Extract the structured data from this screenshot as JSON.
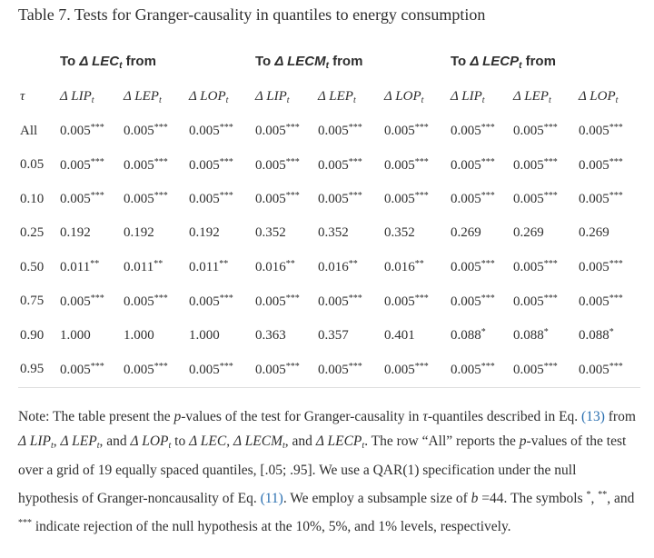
{
  "title": "Table 7. Tests for Granger-causality in quantiles to energy consumption",
  "table": {
    "group_headers": [
      {
        "prefix": "To",
        "base": "Δ LEC",
        "sub": "t",
        "suffix": "from"
      },
      {
        "prefix": "To",
        "base": "Δ LECM",
        "sub": "t",
        "suffix": "from"
      },
      {
        "prefix": "To",
        "base": "Δ LECP",
        "sub": "t",
        "suffix": "from"
      }
    ],
    "columns": [
      {
        "base": "τ"
      },
      {
        "base": "Δ LIP",
        "sub": "t"
      },
      {
        "base": "Δ LEP",
        "sub": "t"
      },
      {
        "base": "Δ LOP",
        "sub": "t"
      },
      {
        "base": "Δ LIP",
        "sub": "t"
      },
      {
        "base": "Δ LEP",
        "sub": "t"
      },
      {
        "base": "Δ LOP",
        "sub": "t"
      },
      {
        "base": "Δ LIP",
        "sub": "t"
      },
      {
        "base": "Δ LEP",
        "sub": "t"
      },
      {
        "base": "Δ LOP",
        "sub": "t"
      }
    ],
    "rows": [
      {
        "label": "All",
        "cells": [
          {
            "value": "0.005",
            "stars": "***"
          },
          {
            "value": "0.005",
            "stars": "***"
          },
          {
            "value": "0.005",
            "stars": "***"
          },
          {
            "value": "0.005",
            "stars": "***"
          },
          {
            "value": "0.005",
            "stars": "***"
          },
          {
            "value": "0.005",
            "stars": "***"
          },
          {
            "value": "0.005",
            "stars": "***"
          },
          {
            "value": "0.005",
            "stars": "***"
          },
          {
            "value": "0.005",
            "stars": "***"
          }
        ]
      },
      {
        "label": "0.05",
        "cells": [
          {
            "value": "0.005",
            "stars": "***"
          },
          {
            "value": "0.005",
            "stars": "***"
          },
          {
            "value": "0.005",
            "stars": "***"
          },
          {
            "value": "0.005",
            "stars": "***"
          },
          {
            "value": "0.005",
            "stars": "***"
          },
          {
            "value": "0.005",
            "stars": "***"
          },
          {
            "value": "0.005",
            "stars": "***"
          },
          {
            "value": "0.005",
            "stars": "***"
          },
          {
            "value": "0.005",
            "stars": "***"
          }
        ]
      },
      {
        "label": "0.10",
        "cells": [
          {
            "value": "0.005",
            "stars": "***"
          },
          {
            "value": "0.005",
            "stars": "***"
          },
          {
            "value": "0.005",
            "stars": "***"
          },
          {
            "value": "0.005",
            "stars": "***"
          },
          {
            "value": "0.005",
            "stars": "***"
          },
          {
            "value": "0.005",
            "stars": "***"
          },
          {
            "value": "0.005",
            "stars": "***"
          },
          {
            "value": "0.005",
            "stars": "***"
          },
          {
            "value": "0.005",
            "stars": "***"
          }
        ]
      },
      {
        "label": "0.25",
        "cells": [
          {
            "value": "0.192"
          },
          {
            "value": "0.192"
          },
          {
            "value": "0.192"
          },
          {
            "value": "0.352"
          },
          {
            "value": "0.352"
          },
          {
            "value": "0.352"
          },
          {
            "value": "0.269"
          },
          {
            "value": "0.269"
          },
          {
            "value": "0.269"
          }
        ]
      },
      {
        "label": "0.50",
        "cells": [
          {
            "value": "0.011",
            "stars": "**"
          },
          {
            "value": "0.011",
            "stars": "**"
          },
          {
            "value": "0.011",
            "stars": "**"
          },
          {
            "value": "0.016",
            "stars": "**"
          },
          {
            "value": "0.016",
            "stars": "**"
          },
          {
            "value": "0.016",
            "stars": "**"
          },
          {
            "value": "0.005",
            "stars": "***"
          },
          {
            "value": "0.005",
            "stars": "***"
          },
          {
            "value": "0.005",
            "stars": "***"
          }
        ]
      },
      {
        "label": "0.75",
        "cells": [
          {
            "value": "0.005",
            "stars": "***"
          },
          {
            "value": "0.005",
            "stars": "***"
          },
          {
            "value": "0.005",
            "stars": "***"
          },
          {
            "value": "0.005",
            "stars": "***"
          },
          {
            "value": "0.005",
            "stars": "***"
          },
          {
            "value": "0.005",
            "stars": "***"
          },
          {
            "value": "0.005",
            "stars": "***"
          },
          {
            "value": "0.005",
            "stars": "***"
          },
          {
            "value": "0.005",
            "stars": "***"
          }
        ]
      },
      {
        "label": "0.90",
        "cells": [
          {
            "value": "1.000"
          },
          {
            "value": "1.000"
          },
          {
            "value": "1.000"
          },
          {
            "value": "0.363"
          },
          {
            "value": "0.357"
          },
          {
            "value": "0.401"
          },
          {
            "value": "0.088",
            "stars": "*"
          },
          {
            "value": "0.088",
            "stars": "*"
          },
          {
            "value": "0.088",
            "stars": "*"
          }
        ]
      },
      {
        "label": "0.95",
        "cells": [
          {
            "value": "0.005",
            "stars": "***"
          },
          {
            "value": "0.005",
            "stars": "***"
          },
          {
            "value": "0.005",
            "stars": "***"
          },
          {
            "value": "0.005",
            "stars": "***"
          },
          {
            "value": "0.005",
            "stars": "***"
          },
          {
            "value": "0.005",
            "stars": "***"
          },
          {
            "value": "0.005",
            "stars": "***"
          },
          {
            "value": "0.005",
            "stars": "***"
          },
          {
            "value": "0.005",
            "stars": "***"
          }
        ]
      }
    ]
  },
  "note": [
    {
      "kind": "text",
      "text": "Note: The table present the "
    },
    {
      "kind": "italic",
      "text": "p"
    },
    {
      "kind": "text",
      "text": "-values of the test for Granger-causality in "
    },
    {
      "kind": "math",
      "text": "τ"
    },
    {
      "kind": "text",
      "text": "-quantiles described in Eq. "
    },
    {
      "kind": "link",
      "text": "(13)"
    },
    {
      "kind": "text",
      "text": " from "
    },
    {
      "kind": "math",
      "text": "Δ LIP"
    },
    {
      "kind": "sub",
      "text": "t"
    },
    {
      "kind": "text",
      "text": ", "
    },
    {
      "kind": "math",
      "text": "Δ LEP"
    },
    {
      "kind": "sub",
      "text": "t"
    },
    {
      "kind": "text",
      "text": ", and "
    },
    {
      "kind": "math",
      "text": "Δ LOP"
    },
    {
      "kind": "sub",
      "text": "t"
    },
    {
      "kind": "text",
      "text": " to "
    },
    {
      "kind": "math",
      "text": "Δ LEC"
    },
    {
      "kind": "text",
      "text": ", "
    },
    {
      "kind": "math",
      "text": "Δ LECM"
    },
    {
      "kind": "sub",
      "text": "t"
    },
    {
      "kind": "text",
      "text": ", and "
    },
    {
      "kind": "math",
      "text": "Δ LECP"
    },
    {
      "kind": "sub",
      "text": "t"
    },
    {
      "kind": "text",
      "text": ". The row “All” reports the "
    },
    {
      "kind": "italic",
      "text": "p"
    },
    {
      "kind": "text",
      "text": "-values of the test over a grid of 19 equally spaced quantiles, [.05; .95]. We use a QAR(1) specification under the null hypothesis of Granger-noncausality of Eq. "
    },
    {
      "kind": "link",
      "text": "(11)"
    },
    {
      "kind": "text",
      "text": ". We employ a subsample size of "
    },
    {
      "kind": "math",
      "text": "b"
    },
    {
      "kind": "text",
      "text": " =44. The symbols "
    },
    {
      "kind": "sup",
      "text": "*"
    },
    {
      "kind": "text",
      "text": ", "
    },
    {
      "kind": "sup",
      "text": "**"
    },
    {
      "kind": "text",
      "text": ", and "
    },
    {
      "kind": "sup",
      "text": "***"
    },
    {
      "kind": "text",
      "text": " indicate rejection of the null hypothesis at the 10%, 5%, and 1% levels, respectively."
    }
  ]
}
